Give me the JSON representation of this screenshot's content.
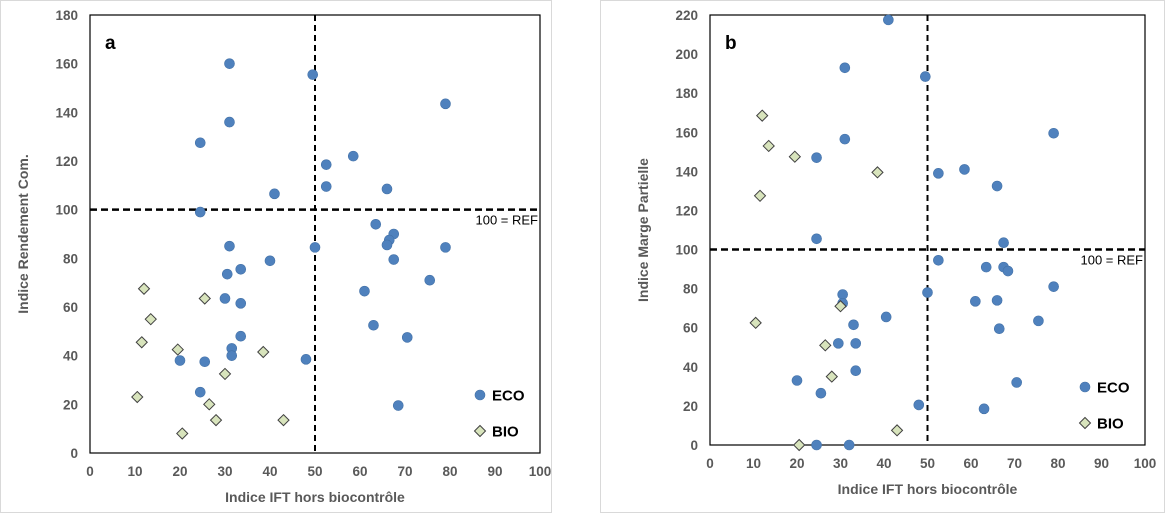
{
  "chart_data": [
    {
      "type": "scatter",
      "panel_label": "a",
      "title": "",
      "xlabel": "Indice IFT hors biocontrôle",
      "ylabel": "Indice Rendement Com.",
      "xlim": [
        0,
        100
      ],
      "ylim": [
        0,
        180
      ],
      "xticks": [
        0,
        10,
        20,
        30,
        40,
        50,
        60,
        70,
        80,
        90,
        100
      ],
      "yticks": [
        0,
        20,
        40,
        60,
        80,
        100,
        120,
        140,
        160,
        180
      ],
      "grid": false,
      "legend_position": "bottom-right",
      "reference_lines": {
        "x": 50,
        "y": 100,
        "label": "100 = REF"
      },
      "series": [
        {
          "name": "ECO",
          "marker": "circle",
          "color": "#4F81BD",
          "points": [
            [
              31,
              160
            ],
            [
              49.5,
              155.5
            ],
            [
              79,
              143.5
            ],
            [
              31,
              136
            ],
            [
              24.5,
              127.5
            ],
            [
              58.5,
              122
            ],
            [
              52.5,
              118.5
            ],
            [
              41,
              106.5
            ],
            [
              52.5,
              109.5
            ],
            [
              66,
              108.5
            ],
            [
              24.5,
              99
            ],
            [
              63.5,
              94
            ],
            [
              67.5,
              90
            ],
            [
              66.5,
              87.5
            ],
            [
              66,
              85.5
            ],
            [
              31,
              85
            ],
            [
              50,
              84.5
            ],
            [
              79,
              84.5
            ],
            [
              40,
              79
            ],
            [
              67.5,
              79.5
            ],
            [
              33.5,
              75.5
            ],
            [
              30.5,
              73.5
            ],
            [
              75.5,
              71
            ],
            [
              61,
              66.5
            ],
            [
              30,
              63.5
            ],
            [
              33.5,
              61.5
            ],
            [
              63,
              52.5
            ],
            [
              33.5,
              48
            ],
            [
              70.5,
              47.5
            ],
            [
              31.5,
              43
            ],
            [
              31.5,
              40
            ],
            [
              48,
              38.5
            ],
            [
              20,
              38
            ],
            [
              25.5,
              37.5
            ],
            [
              24.5,
              25
            ],
            [
              68.5,
              19.5
            ]
          ]
        },
        {
          "name": "BIO",
          "marker": "diamond",
          "color": "#D8E4BC",
          "points": [
            [
              12,
              67.5
            ],
            [
              25.5,
              63.5
            ],
            [
              13.5,
              55
            ],
            [
              11.5,
              45.5
            ],
            [
              19.5,
              42.5
            ],
            [
              38.5,
              41.5
            ],
            [
              30,
              32.5
            ],
            [
              10.5,
              23
            ],
            [
              26.5,
              20
            ],
            [
              28,
              13.5
            ],
            [
              43,
              13.5
            ],
            [
              20.5,
              8
            ]
          ]
        }
      ]
    },
    {
      "type": "scatter",
      "panel_label": "b",
      "title": "",
      "xlabel": "Indice IFT hors biocontrôle",
      "ylabel": "Indice Marge Partielle",
      "xlim": [
        0,
        100
      ],
      "ylim": [
        0,
        220
      ],
      "xticks": [
        0,
        10,
        20,
        30,
        40,
        50,
        60,
        70,
        80,
        90,
        100
      ],
      "yticks": [
        0,
        20,
        40,
        60,
        80,
        100,
        120,
        140,
        160,
        180,
        200,
        220
      ],
      "grid": false,
      "legend_position": "bottom-right",
      "reference_lines": {
        "x": 50,
        "y": 100,
        "label": "100 = REF"
      },
      "series": [
        {
          "name": "ECO",
          "marker": "circle",
          "color": "#4F81BD",
          "points": [
            [
              41,
              217.5
            ],
            [
              31,
              193
            ],
            [
              49.5,
              188.5
            ],
            [
              79,
              159.5
            ],
            [
              31,
              156.5
            ],
            [
              24.5,
              147
            ],
            [
              58.5,
              141
            ],
            [
              52.5,
              139
            ],
            [
              66,
              132.5
            ],
            [
              24.5,
              105.5
            ],
            [
              67.5,
              103.5
            ],
            [
              52.5,
              94.5
            ],
            [
              63.5,
              91
            ],
            [
              67.5,
              91
            ],
            [
              68.5,
              89
            ],
            [
              79,
              81
            ],
            [
              50,
              78
            ],
            [
              30.5,
              77
            ],
            [
              61,
              73.5
            ],
            [
              66,
              74
            ],
            [
              30.5,
              72.5
            ],
            [
              40.5,
              65.5
            ],
            [
              75.5,
              63.5
            ],
            [
              33,
              61.5
            ],
            [
              66.5,
              59.5
            ],
            [
              29.5,
              52
            ],
            [
              33.5,
              52
            ],
            [
              33.5,
              38
            ],
            [
              20,
              33
            ],
            [
              70.5,
              32
            ],
            [
              25.5,
              26.5
            ],
            [
              48,
              20.5
            ],
            [
              63,
              18.5
            ],
            [
              24.5,
              0
            ],
            [
              32,
              0
            ]
          ]
        },
        {
          "name": "BIO",
          "marker": "diamond",
          "color": "#D8E4BC",
          "points": [
            [
              12,
              168.5
            ],
            [
              13.5,
              153
            ],
            [
              19.5,
              147.5
            ],
            [
              38.5,
              139.5
            ],
            [
              11.5,
              127.5
            ],
            [
              30,
              71
            ],
            [
              10.5,
              62.5
            ],
            [
              26.5,
              51
            ],
            [
              28,
              35
            ],
            [
              43,
              7.5
            ],
            [
              20.5,
              0
            ]
          ]
        }
      ]
    }
  ]
}
